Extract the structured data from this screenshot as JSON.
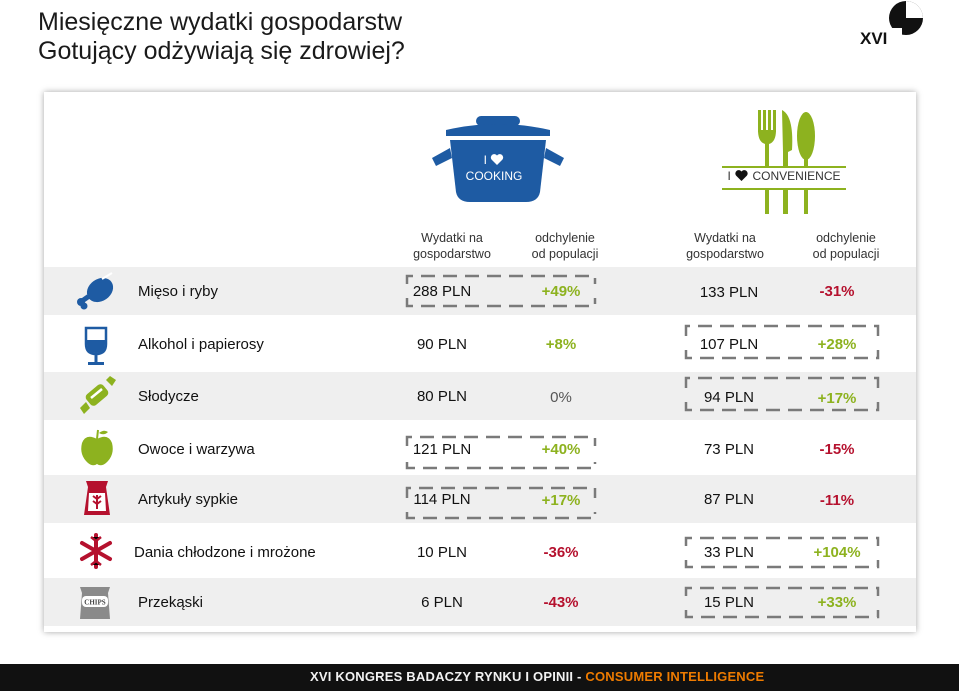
{
  "title": {
    "line1": "Miesięczne wydatki gospodarstw",
    "line2": "Gotujący odżywiają się zdrowiej?"
  },
  "logo": {
    "text": "XVI",
    "icon": "xvi-logo-icon"
  },
  "groups": {
    "cooking": {
      "prefix": "I",
      "label": "COOKING",
      "icon": "cooking-pot-icon",
      "color": "#1e5ba3"
    },
    "convenience": {
      "prefix": "I",
      "label": "CONVENIENCE",
      "icon": "cutlery-icon",
      "color": "#8db21f"
    }
  },
  "columns": {
    "c1": {
      "l1": "Wydatki na",
      "l2": "gospodarstwo"
    },
    "c2": {
      "l1": "odchylenie",
      "l2": "od populacji"
    },
    "c3": {
      "l1": "Wydatki na",
      "l2": "gospodarstwo"
    },
    "c4": {
      "l1": "odchylenie",
      "l2": "od populacji"
    }
  },
  "rows": [
    {
      "category": "Mięso i ryby",
      "icon": "drumstick-icon",
      "cooking_value": "288 PLN",
      "cooking_dev": "+49%",
      "conv_value": "133 PLN",
      "conv_dev": "-31%"
    },
    {
      "category": "Alkohol i papierosy",
      "icon": "wine-glass-icon",
      "cooking_value": "90 PLN",
      "cooking_dev": "+8%",
      "conv_value": "107 PLN",
      "conv_dev": "+28%"
    },
    {
      "category": "Słodycze",
      "icon": "candy-icon",
      "cooking_value": "80 PLN",
      "cooking_dev": "0%",
      "conv_value": "94 PLN",
      "conv_dev": "+17%"
    },
    {
      "category": "Owoce i warzywa",
      "icon": "apple-icon",
      "cooking_value": "121 PLN",
      "cooking_dev": "+40%",
      "conv_value": "73 PLN",
      "conv_dev": "-15%"
    },
    {
      "category": "Artykuły sypkie",
      "icon": "grain-bag-icon",
      "cooking_value": "114 PLN",
      "cooking_dev": "+17%",
      "conv_value": "87 PLN",
      "conv_dev": "-11%"
    },
    {
      "category": "Dania chłodzone i mrożone",
      "icon": "snowflake-icon",
      "cooking_value": "10 PLN",
      "cooking_dev": "-36%",
      "conv_value": "33 PLN",
      "conv_dev": "+104%"
    },
    {
      "category": "Przekąski",
      "icon": "chips-bag-icon",
      "cooking_value": "6 PLN",
      "cooking_dev": "-43%",
      "conv_value": "15 PLN",
      "conv_dev": "+33%"
    }
  ],
  "chips_label": "CHIPS",
  "colors": {
    "positive": "#8db21f",
    "negative": "#b5112e",
    "cooking_blue": "#1e5ba3",
    "icon_red": "#b5112e"
  },
  "footer": {
    "part1": "XVI KONGRES BADACZY RYNKU I OPINII - ",
    "part2": "CONSUMER INTELLIGENCE"
  }
}
